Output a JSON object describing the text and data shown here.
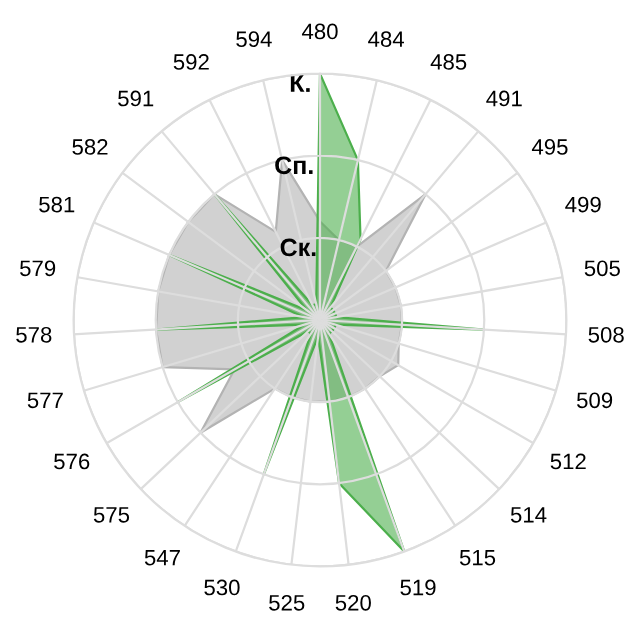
{
  "chart_data": {
    "type": "radar",
    "categories": [
      "480",
      "484",
      "485",
      "491",
      "495",
      "499",
      "505",
      "508",
      "509",
      "512",
      "514",
      "515",
      "519",
      "520",
      "525",
      "530",
      "547",
      "575",
      "576",
      "577",
      "578",
      "579",
      "581",
      "582",
      "591",
      "592",
      "594"
    ],
    "ylim": [
      0,
      3
    ],
    "yticks": [
      {
        "value": 1,
        "label": "Ск."
      },
      {
        "value": 2,
        "label": "Сп."
      },
      {
        "value": 3,
        "label": "К."
      }
    ],
    "grid": true,
    "series": [
      {
        "color": "#b3b3b3",
        "values": [
          1.2,
          1.0,
          1.0,
          2.0,
          1.0,
          1.0,
          1.0,
          1.0,
          1.0,
          1.1,
          1.0,
          1.0,
          1.0,
          1.0,
          1.0,
          1.0,
          1.0,
          2.0,
          1.2,
          2.0,
          2.0,
          2.0,
          2.0,
          2.0,
          2.0,
          1.2,
          2.0
        ]
      },
      {
        "color": "#4caf4c",
        "values": [
          3.0,
          2.0,
          1.1,
          0.2,
          0.2,
          0.2,
          0.2,
          2.0,
          0.2,
          0.2,
          0.2,
          0.2,
          3.0,
          2.0,
          0.2,
          2.0,
          0.2,
          0.2,
          2.0,
          0.2,
          2.0,
          0.2,
          2.0,
          0.2,
          2.0,
          0.2,
          0.2
        ]
      }
    ]
  }
}
